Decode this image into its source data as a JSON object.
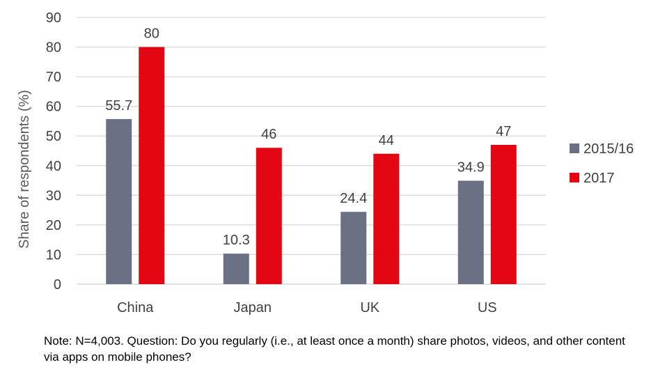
{
  "chart_data": {
    "type": "bar",
    "categories": [
      "China",
      "Japan",
      "UK",
      "US"
    ],
    "series": [
      {
        "name": "2015/16",
        "values": [
          55.7,
          10.3,
          24.4,
          34.9
        ],
        "color": "#6B7184"
      },
      {
        "name": "2017",
        "values": [
          80,
          46,
          44,
          47
        ],
        "color": "#E30613"
      }
    ],
    "data_labels": [
      [
        "55.7",
        "10.3",
        "24.4",
        "34.9"
      ],
      [
        "80",
        "46",
        "44",
        "47"
      ]
    ],
    "y_ticks": [
      "0",
      "10",
      "20",
      "30",
      "40",
      "50",
      "60",
      "70",
      "80",
      "90"
    ],
    "ylim": [
      0,
      90
    ],
    "ylabel": "Share of respondents (%)",
    "xlabel": "",
    "title": "",
    "grid": true,
    "legend_position": "right"
  },
  "note": "Note: N=4,003. Question: Do you regularly (i.e., at least once a month) share photos, videos, and other content via apps on mobile phones?"
}
